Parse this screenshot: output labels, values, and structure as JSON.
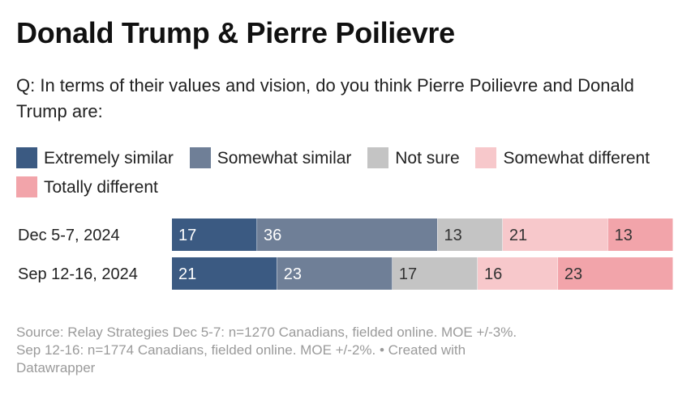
{
  "title": "Donald Trump & Pierre Poilievre",
  "subtitle": "Q: In terms of their values and vision, do you think Pierre Poilievre and Donald Trump are:",
  "legend": [
    {
      "label": "Extremely similar",
      "color": "#3b5a82"
    },
    {
      "label": "Somewhat similar",
      "color": "#6f7f97"
    },
    {
      "label": "Not sure",
      "color": "#c4c4c4"
    },
    {
      "label": "Somewhat different",
      "color": "#f7c8cb"
    },
    {
      "label": "Totally different",
      "color": "#f2a4aa"
    }
  ],
  "chart_data": {
    "type": "bar",
    "orientation": "horizontal-stacked-100",
    "categories": [
      "Dec 5-7, 2024",
      "Sep 12-16, 2024"
    ],
    "series": [
      {
        "name": "Extremely similar",
        "values": [
          17,
          21
        ]
      },
      {
        "name": "Somewhat similar",
        "values": [
          36,
          23
        ]
      },
      {
        "name": "Not sure",
        "values": [
          13,
          17
        ]
      },
      {
        "name": "Somewhat different",
        "values": [
          21,
          16
        ]
      },
      {
        "name": "Totally different",
        "values": [
          13,
          23
        ]
      }
    ],
    "label_colors": [
      "#ffffff",
      "#ffffff",
      "#333333",
      "#333333",
      "#333333"
    ]
  },
  "footer": {
    "line1": "Source: Relay Strategies Dec 5-7: n=1270 Canadians, fielded online. MOE +/-3%.",
    "line2": "Sep 12-16: n=1774 Canadians, fielded online. MOE +/-2%. • Created with",
    "line3": "Datawrapper"
  }
}
